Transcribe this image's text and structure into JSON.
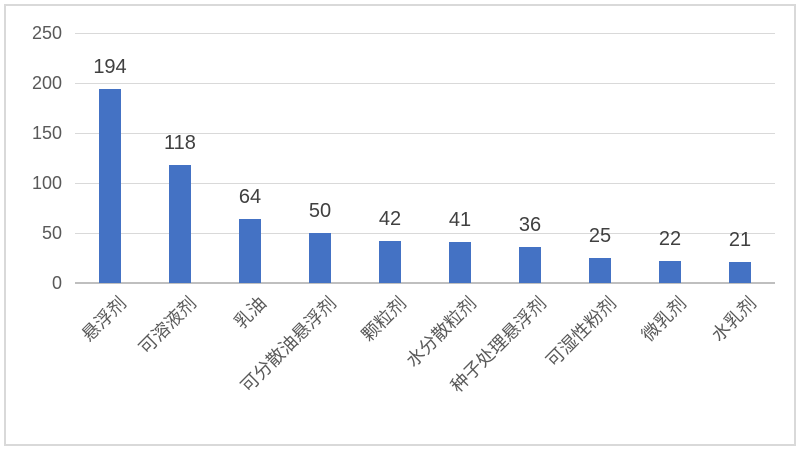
{
  "chart_data": {
    "type": "bar",
    "title": "",
    "xlabel": "",
    "ylabel": "",
    "categories": [
      "悬浮剂",
      "可溶液剂",
      "乳油",
      "可分散油悬浮剂",
      "颗粒剂",
      "水分散粒剂",
      "种子处理悬浮剂",
      "可湿性粉剂",
      "微乳剂",
      "水乳剂"
    ],
    "values": [
      194,
      118,
      64,
      50,
      42,
      41,
      36,
      25,
      22,
      21
    ],
    "y_ticks": [
      0,
      50,
      100,
      150,
      200,
      250
    ],
    "ylim": [
      0,
      250
    ],
    "grid": true,
    "legend": false,
    "data_labels": true,
    "bar_color": "#4472c4",
    "gridline_color": "#d9d9d9",
    "axis_line_color": "#bfbfbf",
    "tick_label_color": "#595959",
    "data_label_color": "#404040",
    "border_color": "#d9d9d9"
  }
}
